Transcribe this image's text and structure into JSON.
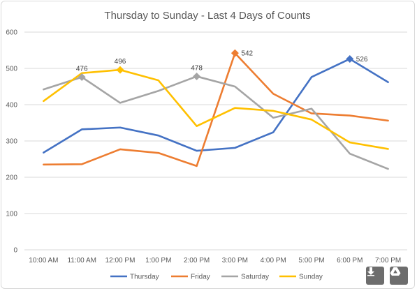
{
  "chart_data": {
    "type": "line",
    "title": "Thursday to Sunday - Last 4 Days of Counts",
    "categories": [
      "10:00 AM",
      "11:00 AM",
      "12:00 PM",
      "1:00 PM",
      "2:00 PM",
      "3:00 PM",
      "4:00 PM",
      "5:00 PM",
      "6:00 PM",
      "7:00 PM"
    ],
    "ylim": [
      0,
      600
    ],
    "yticks": [
      0,
      100,
      200,
      300,
      400,
      500,
      600
    ],
    "grid": true,
    "legend_position": "bottom",
    "series": [
      {
        "name": "Thursday",
        "color": "#4472C4",
        "values": [
          268,
          332,
          337,
          315,
          273,
          281,
          324,
          476,
          526,
          462
        ]
      },
      {
        "name": "Friday",
        "color": "#ED7D31",
        "values": [
          235,
          236,
          277,
          267,
          231,
          542,
          430,
          376,
          370,
          356
        ]
      },
      {
        "name": "Saturday",
        "color": "#A5A5A5",
        "values": [
          442,
          476,
          405,
          438,
          478,
          450,
          364,
          389,
          265,
          223
        ]
      },
      {
        "name": "Sunday",
        "color": "#FFC000",
        "values": [
          410,
          487,
          496,
          467,
          341,
          391,
          383,
          359,
          296,
          278
        ]
      }
    ],
    "annotations": [
      {
        "series": "Saturday",
        "index": 1,
        "text": "476"
      },
      {
        "series": "Sunday",
        "index": 2,
        "text": "496"
      },
      {
        "series": "Saturday",
        "index": 4,
        "text": "478"
      },
      {
        "series": "Friday",
        "index": 5,
        "text": "542"
      },
      {
        "series": "Thursday",
        "index": 8,
        "text": "526"
      }
    ]
  },
  "buttons": {
    "download_icon": "download-arrow-icon",
    "drive_icon": "google-drive-icon"
  }
}
